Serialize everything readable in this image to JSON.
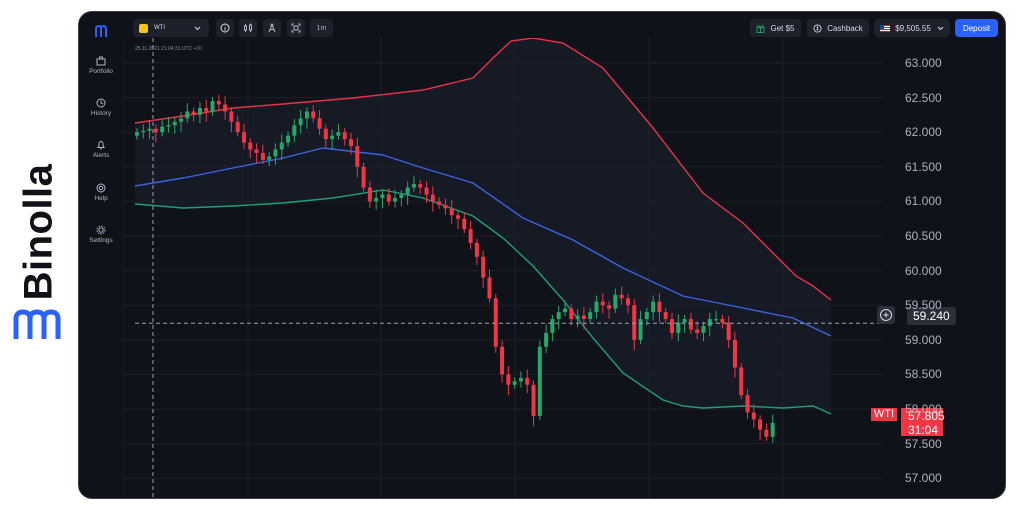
{
  "brand": {
    "name": "Binolla"
  },
  "sidebar": {
    "items": [
      {
        "label": "Portfolio",
        "icon": "briefcase-icon"
      },
      {
        "label": "History",
        "icon": "clock-icon"
      },
      {
        "label": "Alerts",
        "icon": "bell-icon"
      },
      {
        "label": "Help",
        "icon": "lifebuoy-icon"
      },
      {
        "label": "Settings",
        "icon": "gear-icon"
      }
    ]
  },
  "toolbar": {
    "asset": "WTI",
    "timeframe": "1m",
    "get_bonus": "Get $5",
    "cashback": "Cashback",
    "balance": "$9,505.55",
    "deposit": "Deposit"
  },
  "crosshair": {
    "timestamp": "25.11.2021  21:04:31  UTC +10"
  },
  "price_axis": {
    "ticks": [
      "63.000",
      "62.500",
      "62.000",
      "61.500",
      "61.000",
      "60.500",
      "60.000",
      "59.500",
      "59.000",
      "58.500",
      "58.000",
      "57.500",
      "57.000"
    ],
    "crosshair_price": "59.240",
    "asset_label": "WTI",
    "current_price": "57.805",
    "countdown": "31:04"
  },
  "colors": {
    "background": "#10121a",
    "up": "#26a86a",
    "down": "#f23645",
    "upper_band": "#e8334a",
    "middle_band": "#3d63e0",
    "lower_band": "#1f9e7a",
    "deposit_button": "#2962ff"
  }
}
